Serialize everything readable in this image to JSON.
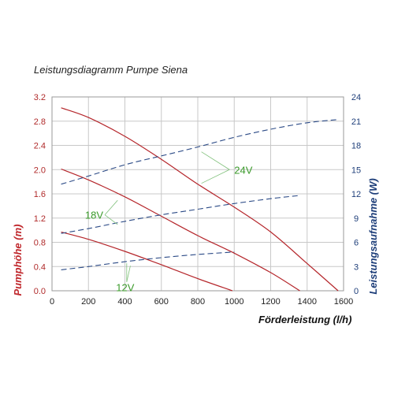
{
  "chart_data": {
    "type": "line",
    "title": "Leistungsdiagramm Pumpe Siena",
    "xlabel": "Förderleistung (l/h)",
    "ylabel": "Pumphöhe (m)",
    "ylabel_right": "Leistungsaufnahme (W)",
    "xlim": [
      0,
      1600
    ],
    "ylim": [
      0,
      3.2
    ],
    "ylim_right": [
      0,
      24
    ],
    "x_ticks": [
      "0",
      "200",
      "400",
      "600",
      "800",
      "1000",
      "1200",
      "1400",
      "1600"
    ],
    "y_ticks_left": [
      "0.0",
      "0.4",
      "0.8",
      "1.2",
      "1.6",
      "2.0",
      "2.4",
      "2.8",
      "3.2"
    ],
    "y_ticks_right": [
      "0",
      "3",
      "6",
      "9",
      "12",
      "15",
      "18",
      "21",
      "24"
    ],
    "grid": true,
    "head_color": "#b5262b",
    "power_color": "#2b4a86",
    "annotation_color": "#3a9a2a",
    "series": [
      {
        "axis": "left",
        "style": "solid",
        "x": [
          50,
          200,
          400,
          600,
          800,
          1000,
          1200,
          1400,
          1570
        ],
        "y": [
          3.02,
          2.86,
          2.55,
          2.17,
          1.76,
          1.38,
          0.97,
          0.45,
          0.0
        ]
      },
      {
        "axis": "left",
        "style": "solid",
        "x": [
          50,
          200,
          400,
          600,
          800,
          1000,
          1200,
          1360
        ],
        "y": [
          2.01,
          1.83,
          1.55,
          1.23,
          0.91,
          0.62,
          0.3,
          0.0
        ]
      },
      {
        "axis": "left",
        "style": "solid",
        "x": [
          50,
          200,
          400,
          600,
          800,
          990
        ],
        "y": [
          0.97,
          0.85,
          0.65,
          0.43,
          0.2,
          0.0
        ]
      },
      {
        "axis": "right",
        "style": "dashed",
        "x": [
          50,
          200,
          400,
          600,
          800,
          1000,
          1200,
          1400,
          1570
        ],
        "y": [
          13.2,
          14.2,
          15.6,
          16.7,
          17.8,
          19.0,
          20.0,
          20.8,
          21.2
        ]
      },
      {
        "axis": "right",
        "style": "dashed",
        "x": [
          50,
          200,
          400,
          600,
          800,
          1000,
          1200,
          1360
        ],
        "y": [
          7.1,
          7.7,
          8.6,
          9.4,
          10.1,
          10.8,
          11.4,
          11.8
        ]
      },
      {
        "axis": "right",
        "style": "dashed",
        "x": [
          50,
          200,
          400,
          600,
          800,
          1000
        ],
        "y": [
          2.6,
          3.0,
          3.6,
          4.1,
          4.5,
          4.8
        ]
      }
    ],
    "annotations": [
      {
        "text": "24V",
        "x": 1000,
        "y_right": 15.0,
        "targets_right": [
          [
            820,
            17.2
          ],
          [
            820,
            13.3
          ]
        ]
      },
      {
        "text": "18V",
        "x": 290,
        "y_right": 9.4,
        "targets_right": [
          [
            360,
            11.2
          ],
          [
            360,
            8.2
          ]
        ]
      },
      {
        "text": "12V",
        "x": 410,
        "y_right": 1.1,
        "targets_right": [
          [
            430,
            3.1
          ],
          [
            410,
            3.4
          ]
        ]
      }
    ]
  }
}
